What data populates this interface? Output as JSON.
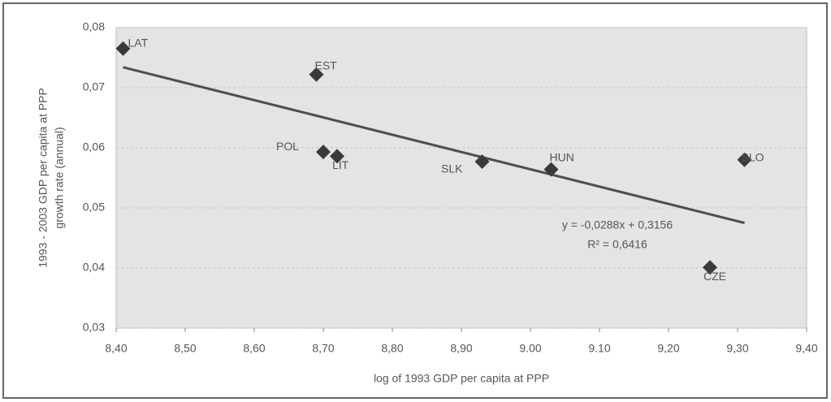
{
  "chart_data": {
    "type": "scatter",
    "xlabel": "log of 1993 GDP per capita at PPP",
    "ylabel": [
      "1993 - 2003 GDP per capita at PPP",
      "growth rate (annual)"
    ],
    "x": [
      8.41,
      8.69,
      8.7,
      8.72,
      8.93,
      9.03,
      9.31,
      9.26
    ],
    "values": [
      0.0765,
      0.0722,
      0.0593,
      0.0586,
      0.0577,
      0.0564,
      0.058,
      0.0401
    ],
    "labels": [
      "LAT",
      "EST",
      "POL",
      "LIT",
      "SLK",
      "HUN",
      "SLO",
      "CZE"
    ],
    "color": "#3a3a3a",
    "trendline": {
      "x": [
        8.41,
        9.31
      ],
      "values": [
        0.0734,
        0.0475
      ],
      "color": "#4a4f55",
      "equation": "y = -0,0288x + 0,3156",
      "r2": "R² = 0,6416"
    },
    "xlim": [
      8.4,
      9.4
    ],
    "xticks": [
      {
        "value": 8.4,
        "label": "8,40"
      },
      {
        "value": 8.5,
        "label": "8,50"
      },
      {
        "value": 8.6,
        "label": "8,60"
      },
      {
        "value": 8.7,
        "label": "8,70"
      },
      {
        "value": 8.8,
        "label": "8,80"
      },
      {
        "value": 8.9,
        "label": "8,90"
      },
      {
        "value": 9.0,
        "label": "9.00"
      },
      {
        "value": 9.1,
        "label": "9.10"
      },
      {
        "value": 9.2,
        "label": "9,20"
      },
      {
        "value": 9.3,
        "label": "9,30"
      },
      {
        "value": 9.4,
        "label": "9,40"
      }
    ],
    "ylim": [
      0.03,
      0.08
    ],
    "yticks": [
      {
        "value": 0.03,
        "label": "0,03"
      },
      {
        "value": 0.04,
        "label": "0,04"
      },
      {
        "value": 0.05,
        "label": "0,05"
      },
      {
        "value": 0.06,
        "label": "0,06"
      },
      {
        "value": 0.07,
        "label": "0,07"
      },
      {
        "value": 0.08,
        "label": "0,08"
      }
    ],
    "grid": true
  }
}
